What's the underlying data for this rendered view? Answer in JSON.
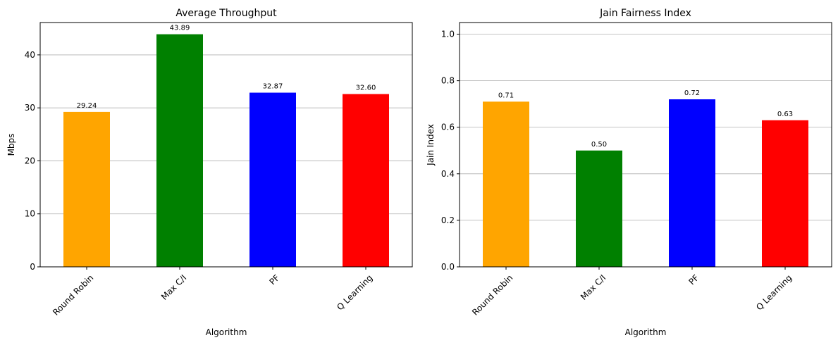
{
  "chart_data": [
    {
      "type": "bar",
      "title": "Average Throughput",
      "xlabel": "Algorithm",
      "ylabel": "Mbps",
      "categories": [
        "Round Robin",
        "Max C/I",
        "PF",
        "Q Learning"
      ],
      "values": [
        29.24,
        43.89,
        32.87,
        32.6
      ],
      "value_labels": [
        "29.24",
        "43.89",
        "32.87",
        "32.60"
      ],
      "colors": [
        "#FFA500",
        "#008000",
        "#0000FF",
        "#FF0000"
      ],
      "ylim": [
        0,
        46.1
      ],
      "yticks": [
        0,
        10,
        20,
        30,
        40
      ],
      "ytick_labels": [
        "0",
        "10",
        "20",
        "30",
        "40"
      ],
      "grid": "y"
    },
    {
      "type": "bar",
      "title": "Jain Fairness Index",
      "xlabel": "Algorithm",
      "ylabel": "Jain Index",
      "categories": [
        "Round Robin",
        "Max C/I",
        "PF",
        "Q Learning"
      ],
      "values": [
        0.71,
        0.5,
        0.72,
        0.63
      ],
      "value_labels": [
        "0.71",
        "0.50",
        "0.72",
        "0.63"
      ],
      "colors": [
        "#FFA500",
        "#008000",
        "#0000FF",
        "#FF0000"
      ],
      "ylim": [
        0,
        1.05
      ],
      "yticks": [
        0,
        0.2,
        0.4,
        0.6,
        0.8,
        1.0
      ],
      "ytick_labels": [
        "0.0",
        "0.2",
        "0.4",
        "0.6",
        "0.8",
        "1.0"
      ],
      "grid": "y"
    }
  ]
}
